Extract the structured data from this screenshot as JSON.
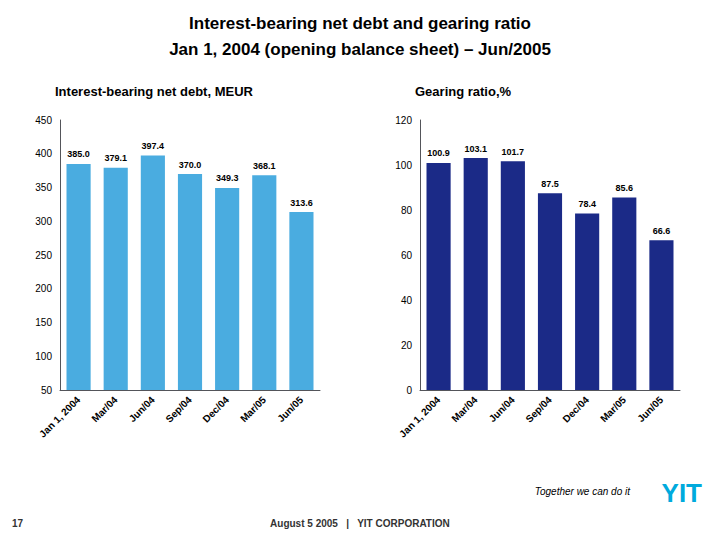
{
  "title": "Interest-bearing net debt and gearing ratio",
  "subtitle": "Jan 1, 2004 (opening balance sheet) – Jun/2005",
  "annotations": [
    "August 5 2005   |   YIT CORPORATION",
    "17",
    "Together we can do it",
    "YIT"
  ],
  "chart_data": [
    {
      "type": "bar",
      "title": "Interest-bearing net debt, MEUR",
      "categories": [
        "Jan 1, 2004",
        "Mar/04",
        "Jun/04",
        "Sep/04",
        "Dec/04",
        "Mar/05",
        "Jun/05"
      ],
      "values": [
        385.0,
        379.1,
        397.4,
        370.0,
        349.3,
        368.1,
        313.6
      ],
      "value_labels": [
        "385.0",
        "379.1",
        "397.4",
        "370.0",
        "349.3",
        "368.1",
        "313.6"
      ],
      "color": "#4AACE0",
      "ylim": [
        50,
        450
      ],
      "yticks": [
        50,
        100,
        150,
        200,
        250,
        300,
        350,
        400,
        450
      ],
      "grid": false,
      "data_labels": true
    },
    {
      "type": "bar",
      "title": "Gearing ratio,%",
      "categories": [
        "Jan 1, 2004",
        "Mar/04",
        "Jun/04",
        "Sep/04",
        "Dec/04",
        "Mar/05",
        "Jun/05"
      ],
      "values": [
        100.9,
        103.1,
        101.7,
        87.5,
        78.4,
        85.6,
        66.6
      ],
      "color": "#1B2A87",
      "ylim": [
        0,
        120
      ],
      "yticks": [
        0,
        20,
        40,
        60,
        80,
        100,
        120
      ],
      "grid": false,
      "data_labels": true
    }
  ]
}
